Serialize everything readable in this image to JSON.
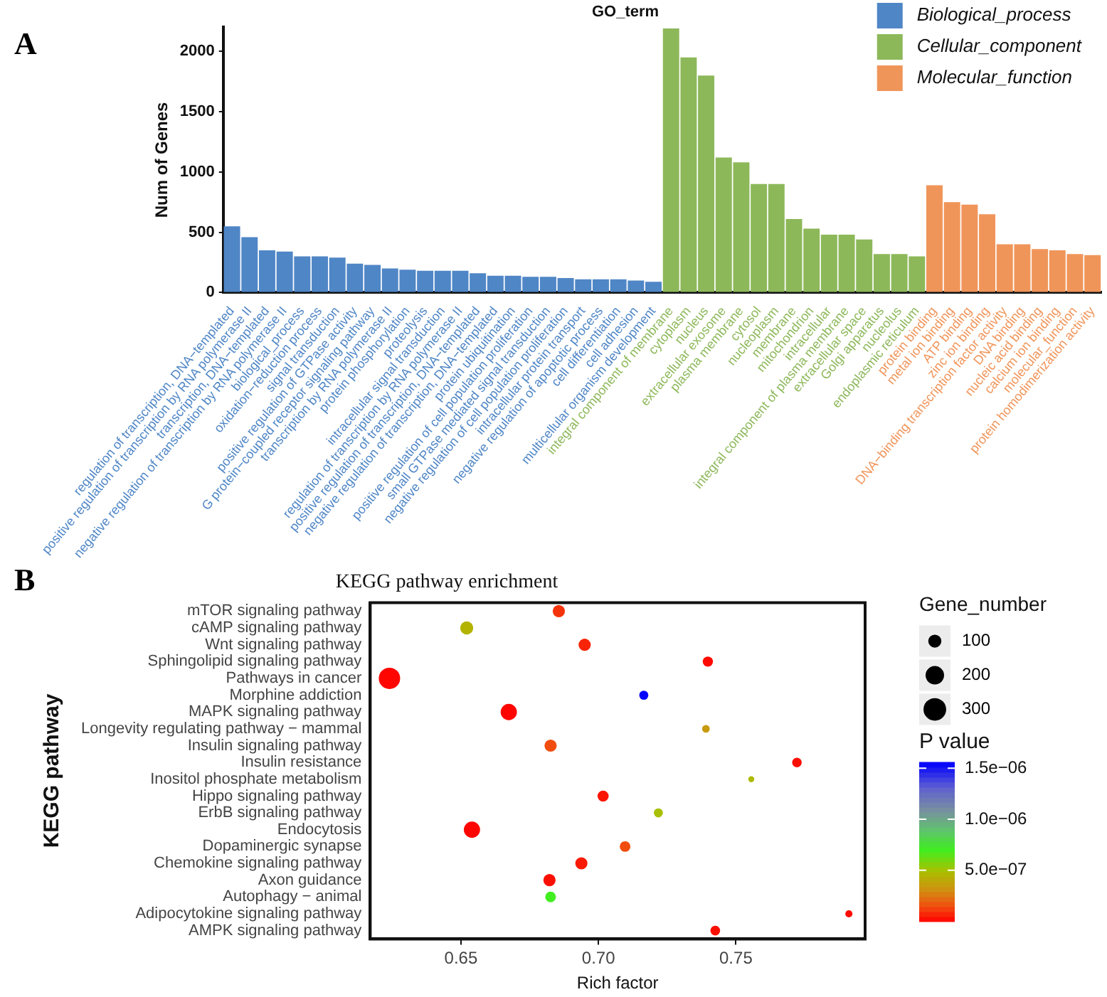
{
  "chart_data": [
    {
      "type": "bar",
      "title": "GO_term",
      "ylabel": "Num of Genes",
      "annotations": [
        "A"
      ],
      "legend": "top right",
      "ylim": [
        0,
        2200
      ],
      "yticks": [
        0,
        500,
        1000,
        1500,
        2000
      ],
      "categories": [
        "regulation of transcription, DNA−templated",
        "positive regulation of transcription by RNA polymerase II",
        "transcription, DNA−templated",
        "negative regulation of transcription by RNA polymerase II",
        "biological_process",
        "oxidation−reduction process",
        "signal transduction",
        "positive regulation of GTPase activity",
        "G protein−coupled receptor signaling pathway",
        "transcription by RNA polymerase II",
        "protein phosphorylation",
        "proteolysis",
        "intracellular signal transduction",
        "regulation of transcription by RNA polymerase II",
        "positive regulation of transcription, DNA−templated",
        "negative regulation of transcription, DNA−templated",
        "protein ubiquitination",
        "positive regulation of cell population proliferation",
        "small GTPase mediated signal transduction",
        "negative regulation of cell population proliferation",
        "intracellular protein transport",
        "negative regulation of apoptotic process",
        "cell differentiation",
        "cell adhesion",
        "multicellular organism development",
        "integral component of membrane",
        "cytoplasm",
        "nucleus",
        "extracellular exosome",
        "plasma membrane",
        "cytosol",
        "nucleoplasm",
        "membrane",
        "mitochondrion",
        "intracellular",
        "integral component of plasma membrane",
        "extracellular space",
        "Golgi apparatus",
        "nucleolus",
        "endoplasmic reticulum",
        "protein binding",
        "metal ion binding",
        "ATP binding",
        "zinc ion binding",
        "DNA−binding transcription factor activity",
        "DNA binding",
        "nucleic acid binding",
        "calcium ion binding",
        "molecular_function",
        "protein homodimerization activity"
      ],
      "series": [
        {
          "name": "Biological_process",
          "color": "#4f86c6",
          "values": [
            550,
            460,
            350,
            340,
            300,
            300,
            290,
            240,
            230,
            200,
            190,
            180,
            180,
            180,
            160,
            140,
            140,
            130,
            130,
            120,
            110,
            110,
            110,
            100,
            90,
            null,
            null,
            null,
            null,
            null,
            null,
            null,
            null,
            null,
            null,
            null,
            null,
            null,
            null,
            null,
            null,
            null,
            null,
            null,
            null,
            null,
            null,
            null,
            null,
            null
          ]
        },
        {
          "name": "Cellular_component",
          "color": "#8db85a",
          "values": [
            null,
            null,
            null,
            null,
            null,
            null,
            null,
            null,
            null,
            null,
            null,
            null,
            null,
            null,
            null,
            null,
            null,
            null,
            null,
            null,
            null,
            null,
            null,
            null,
            null,
            2190,
            1950,
            1800,
            1120,
            1080,
            900,
            900,
            610,
            530,
            480,
            480,
            440,
            320,
            320,
            300,
            null,
            null,
            null,
            null,
            null,
            null,
            null,
            null,
            null,
            null
          ]
        },
        {
          "name": "Molecular_function",
          "color": "#f0955a",
          "values": [
            null,
            null,
            null,
            null,
            null,
            null,
            null,
            null,
            null,
            null,
            null,
            null,
            null,
            null,
            null,
            null,
            null,
            null,
            null,
            null,
            null,
            null,
            null,
            null,
            null,
            null,
            null,
            null,
            null,
            null,
            null,
            null,
            null,
            null,
            null,
            null,
            null,
            null,
            null,
            null,
            890,
            750,
            730,
            650,
            400,
            400,
            360,
            350,
            320,
            310
          ]
        }
      ]
    },
    {
      "type": "bubble",
      "orientation": "horizontal",
      "title": "KEGG pathway enrichment",
      "xlabel": "Rich factor",
      "ylabel": "KEGG pathway",
      "annotations": [
        "B"
      ],
      "marker": "circle",
      "categories": [
        "mTOR signaling pathway",
        "cAMP signaling pathway",
        "Wnt signaling pathway",
        "Sphingolipid signaling pathway",
        "Pathways in cancer",
        "Morphine addiction",
        "MAPK signaling pathway",
        "Longevity regulating pathway − mammal",
        "Insulin signaling pathway",
        "Insulin resistance",
        "Inositol phosphate metabolism",
        "Hippo signaling pathway",
        "ErbB signaling pathway",
        "Endocytosis",
        "Dopaminergic synapse",
        "Chemokine signaling pathway",
        "Axon guidance",
        "Autophagy − animal",
        "Adipocytokine signaling pathway",
        "AMPK signaling pathway"
      ],
      "values": [
        0.6856,
        0.6521,
        0.695,
        0.7398,
        0.624,
        0.7165,
        0.6674,
        0.7391,
        0.6826,
        0.7722,
        0.7556,
        0.7017,
        0.7218,
        0.654,
        0.7097,
        0.6938,
        0.6822,
        0.6826,
        0.7911,
        0.7425
      ],
      "sizes": [
        87,
        100,
        87,
        61,
        266,
        48,
        154,
        34,
        87,
        53,
        21,
        72,
        48,
        154,
        66,
        87,
        87,
        66,
        30,
        55
      ],
      "cvalues": [
        1e-07,
        4.5e-07,
        7e-08,
        2e-08,
        1e-08,
        1.55e-06,
        1e-08,
        3.5e-07,
        1.5e-07,
        3e-08,
        4.8e-07,
        4e-08,
        5e-07,
        1e-08,
        1.5e-07,
        5e-08,
        3e-08,
        7e-07,
        2e-08,
        3e-08
      ],
      "xlim": [
        0.617,
        0.797
      ],
      "xticks": [
        0.65,
        {
          "value": 0.7,
          "label": "0.70"
        },
        0.75
      ],
      "legend_title": "Gene_number",
      "size_legend": [
        100,
        200,
        300
      ],
      "clabel": "P value",
      "clim": [
        0,
        1.56e-06
      ],
      "cticks": [
        {
          "value": 5e-07,
          "label": "5.0e−07"
        },
        {
          "value": 1e-06,
          "label": "1.0e−06"
        },
        {
          "value": 1.5e-06,
          "label": "1.5e−06"
        }
      ]
    }
  ]
}
